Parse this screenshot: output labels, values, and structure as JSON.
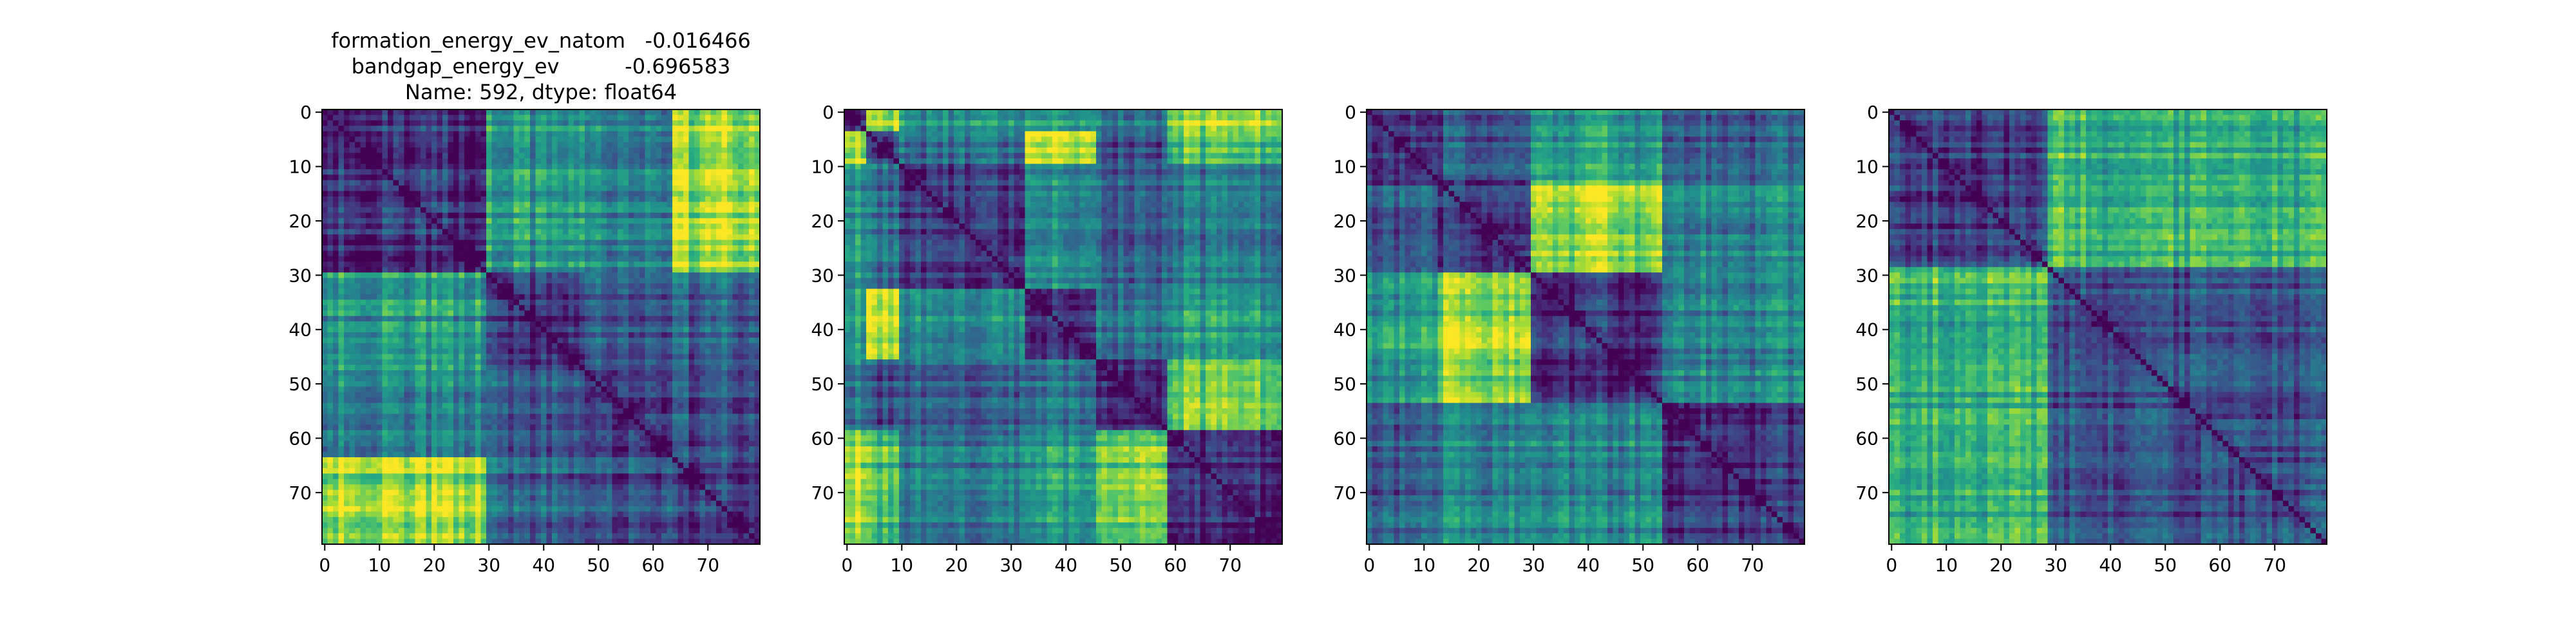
{
  "chart_data": [
    {
      "type": "heatmap",
      "title_lines": [
        "formation_energy_ev_natom   -0.016466",
        "bandgap_energy_ev          -0.696583",
        "Name: 592, dtype: float64"
      ],
      "n": 80,
      "x_ticks": [
        "0",
        "10",
        "20",
        "30",
        "40",
        "50",
        "60",
        "70"
      ],
      "y_ticks": [
        "0",
        "10",
        "20",
        "30",
        "40",
        "50",
        "60",
        "70"
      ],
      "colormap": "viridis",
      "block_boundaries": [
        0,
        30,
        48,
        64,
        80
      ],
      "block_levels": [
        [
          0.15,
          0.55,
          0.42,
          0.85
        ],
        [
          0.55,
          0.15,
          0.25,
          0.3
        ],
        [
          0.42,
          0.25,
          0.15,
          0.22
        ],
        [
          0.85,
          0.3,
          0.22,
          0.15
        ]
      ]
    },
    {
      "type": "heatmap",
      "title_lines": [],
      "n": 80,
      "x_ticks": [
        "0",
        "10",
        "20",
        "30",
        "40",
        "50",
        "60",
        "70"
      ],
      "y_ticks": [
        "0",
        "10",
        "20",
        "30",
        "40",
        "50",
        "60",
        "70"
      ],
      "colormap": "viridis",
      "block_boundaries": [
        0,
        4,
        10,
        33,
        46,
        59,
        80
      ],
      "block_levels": [
        [
          0.15,
          0.85,
          0.5,
          0.55,
          0.4,
          0.85
        ],
        [
          0.85,
          0.15,
          0.35,
          0.9,
          0.25,
          0.7
        ],
        [
          0.5,
          0.35,
          0.15,
          0.45,
          0.3,
          0.4
        ],
        [
          0.55,
          0.9,
          0.45,
          0.15,
          0.4,
          0.55
        ],
        [
          0.4,
          0.25,
          0.3,
          0.4,
          0.15,
          0.8
        ],
        [
          0.85,
          0.7,
          0.4,
          0.55,
          0.8,
          0.15
        ]
      ]
    },
    {
      "type": "heatmap",
      "title_lines": [],
      "n": 80,
      "x_ticks": [
        "0",
        "10",
        "20",
        "30",
        "40",
        "50",
        "60",
        "70"
      ],
      "y_ticks": [
        "0",
        "10",
        "20",
        "30",
        "40",
        "50",
        "60",
        "70"
      ],
      "colormap": "viridis",
      "block_boundaries": [
        0,
        13,
        30,
        54,
        80
      ],
      "block_levels": [
        [
          0.15,
          0.25,
          0.55,
          0.3
        ],
        [
          0.25,
          0.15,
          0.85,
          0.45
        ],
        [
          0.55,
          0.85,
          0.15,
          0.45
        ],
        [
          0.3,
          0.45,
          0.45,
          0.15
        ]
      ]
    },
    {
      "type": "heatmap",
      "title_lines": [],
      "n": 80,
      "x_ticks": [
        "0",
        "10",
        "20",
        "30",
        "40",
        "50",
        "60",
        "70"
      ],
      "y_ticks": [
        "0",
        "10",
        "20",
        "30",
        "40",
        "50",
        "60",
        "70"
      ],
      "colormap": "viridis",
      "block_boundaries": [
        0,
        29,
        80
      ],
      "block_levels": [
        [
          0.2,
          0.65
        ],
        [
          0.65,
          0.25
        ]
      ]
    }
  ]
}
